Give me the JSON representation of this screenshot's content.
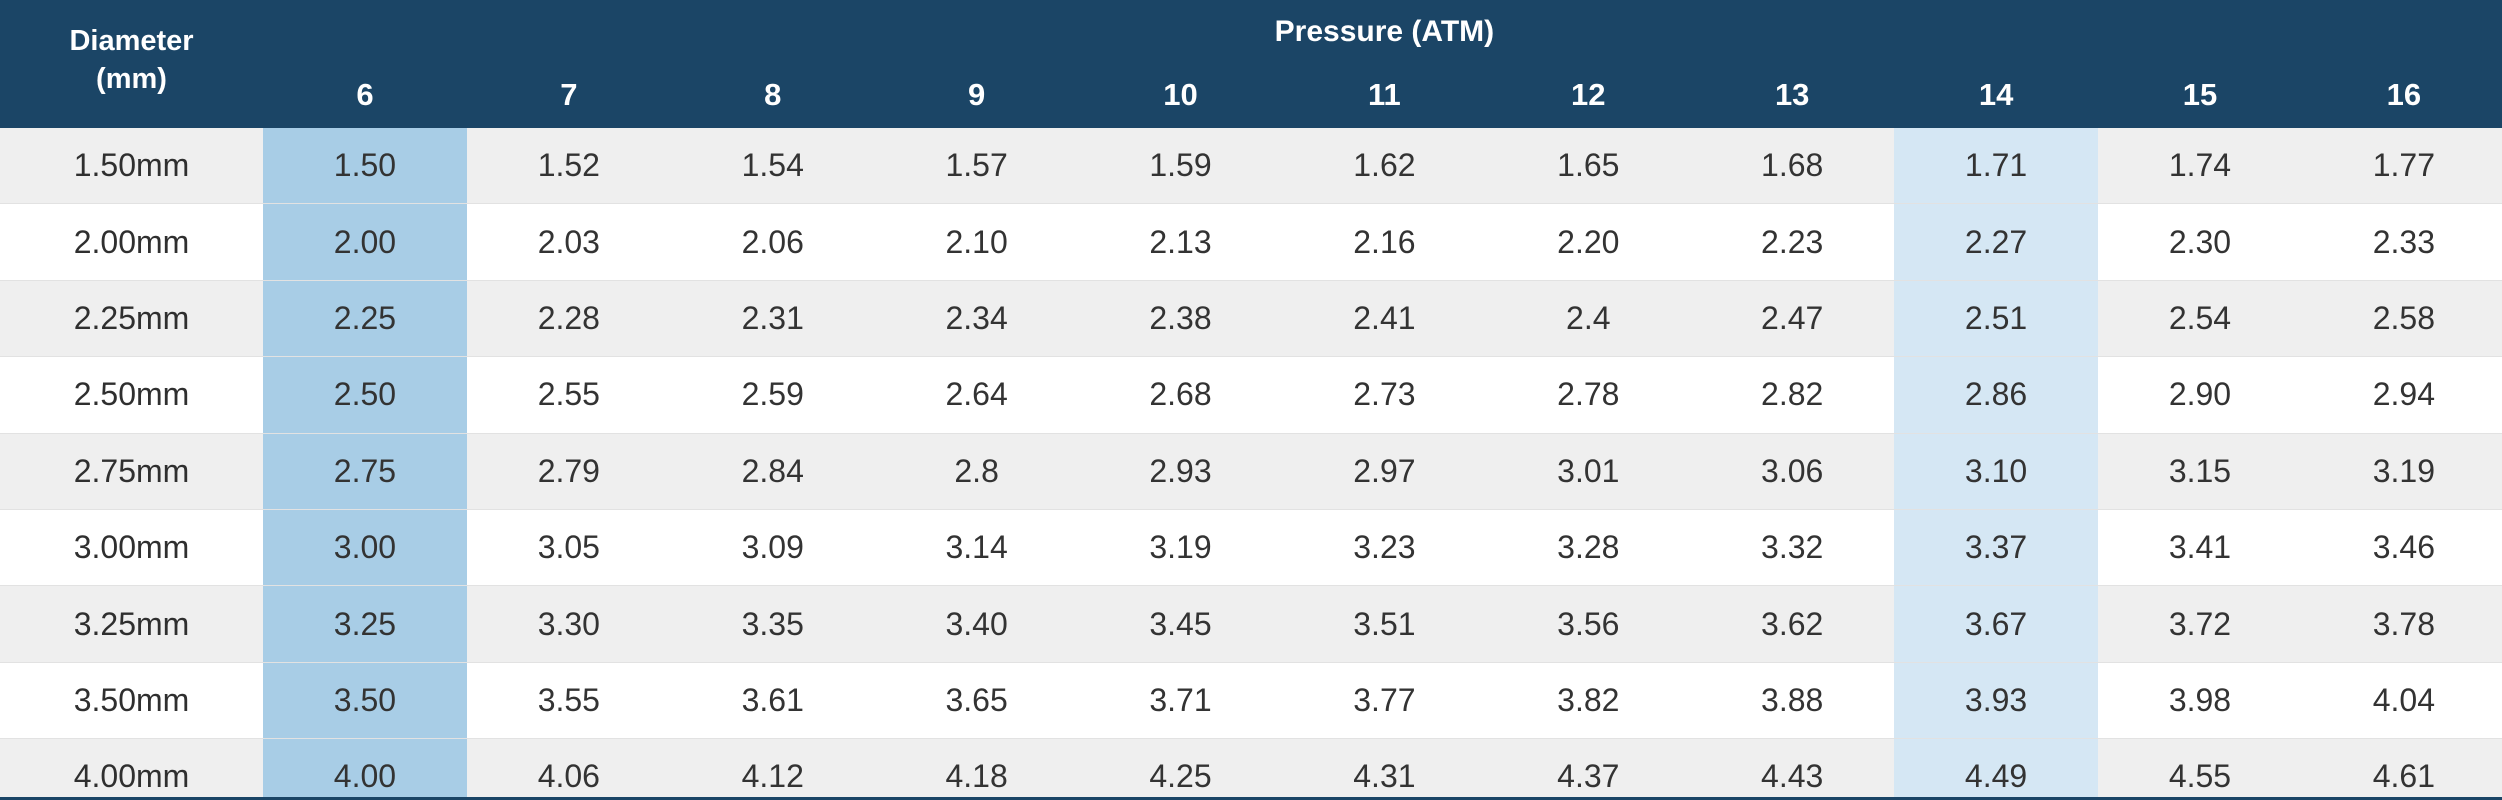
{
  "header": {
    "diameter_label_line1": "Diameter",
    "diameter_label_line2": "(mm)",
    "pressure_title": "Pressure (ATM)",
    "pressures": [
      "6",
      "7",
      "8",
      "9",
      "10",
      "11",
      "12",
      "13",
      "14",
      "15",
      "16"
    ]
  },
  "highlight": {
    "strong_column": "6",
    "light_column": "14",
    "strong_color": "#a8cde6",
    "light_color": "#d5e7f4",
    "header_color": "#1b4566"
  },
  "rows": [
    {
      "diameter": "1.50mm",
      "values": [
        "1.50",
        "1.52",
        "1.54",
        "1.57",
        "1.59",
        "1.62",
        "1.65",
        "1.68",
        "1.71",
        "1.74",
        "1.77"
      ]
    },
    {
      "diameter": "2.00mm",
      "values": [
        "2.00",
        "2.03",
        "2.06",
        "2.10",
        "2.13",
        "2.16",
        "2.20",
        "2.23",
        "2.27",
        "2.30",
        "2.33"
      ]
    },
    {
      "diameter": "2.25mm",
      "values": [
        "2.25",
        "2.28",
        "2.31",
        "2.34",
        "2.38",
        "2.41",
        "2.4",
        "2.47",
        "2.51",
        "2.54",
        "2.58"
      ]
    },
    {
      "diameter": "2.50mm",
      "values": [
        "2.50",
        "2.55",
        "2.59",
        "2.64",
        "2.68",
        "2.73",
        "2.78",
        "2.82",
        "2.86",
        "2.90",
        "2.94"
      ]
    },
    {
      "diameter": "2.75mm",
      "values": [
        "2.75",
        "2.79",
        "2.84",
        "2.8",
        "2.93",
        "2.97",
        "3.01",
        "3.06",
        "3.10",
        "3.15",
        "3.19"
      ]
    },
    {
      "diameter": "3.00mm",
      "values": [
        "3.00",
        "3.05",
        "3.09",
        "3.14",
        "3.19",
        "3.23",
        "3.28",
        "3.32",
        "3.37",
        "3.41",
        "3.46"
      ]
    },
    {
      "diameter": "3.25mm",
      "values": [
        "3.25",
        "3.30",
        "3.35",
        "3.40",
        "3.45",
        "3.51",
        "3.56",
        "3.62",
        "3.67",
        "3.72",
        "3.78"
      ]
    },
    {
      "diameter": "3.50mm",
      "values": [
        "3.50",
        "3.55",
        "3.61",
        "3.65",
        "3.71",
        "3.77",
        "3.82",
        "3.88",
        "3.93",
        "3.98",
        "4.04"
      ]
    },
    {
      "diameter": "4.00mm",
      "values": [
        "4.00",
        "4.06",
        "4.12",
        "4.18",
        "4.25",
        "4.31",
        "4.37",
        "4.43",
        "4.49",
        "4.55",
        "4.61"
      ]
    }
  ]
}
